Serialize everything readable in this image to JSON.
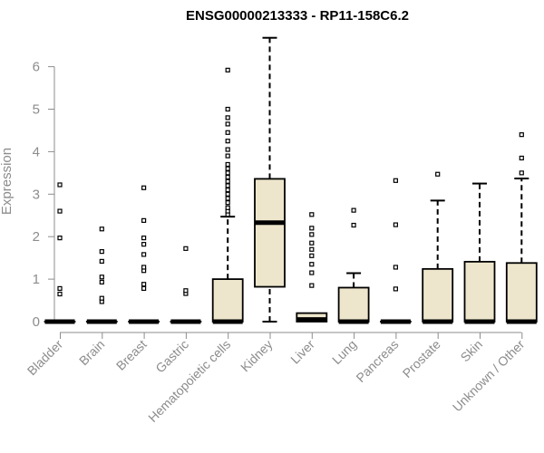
{
  "chart_data": {
    "type": "box",
    "title": "ENSG00000213333 - RP11-158C6.2",
    "xlabel": "",
    "ylabel": "Expression",
    "ylim": [
      0,
      6.8
    ],
    "yticks": [
      "0",
      "1",
      "2",
      "3",
      "4",
      "5",
      "6"
    ],
    "grid": false,
    "colors": {
      "box_fill": "#ede6cc",
      "stroke": "#000000",
      "axis_text": "#8c8c8c"
    },
    "categories": [
      "Bladder",
      "Brain",
      "Breast",
      "Gastric",
      "Hematopoietic cells",
      "Kidney",
      "Liver",
      "Lung",
      "Pancreas",
      "Prostate",
      "Skin",
      "Unknown / Other"
    ],
    "boxes": [
      {
        "name": "Bladder",
        "min": 0,
        "q1": 0,
        "median": 0,
        "q3": 0,
        "max": 0,
        "outliers": [
          0.65,
          0.78,
          1.97,
          2.6,
          3.22
        ]
      },
      {
        "name": "Brain",
        "min": 0,
        "q1": 0,
        "median": 0,
        "q3": 0,
        "max": 0,
        "outliers": [
          0.47,
          0.55,
          0.93,
          1.05,
          1.42,
          1.65,
          2.18
        ]
      },
      {
        "name": "Breast",
        "min": 0,
        "q1": 0,
        "median": 0,
        "q3": 0,
        "max": 0,
        "outliers": [
          0.78,
          0.88,
          1.2,
          1.28,
          1.58,
          1.82,
          1.97,
          2.38,
          3.15
        ]
      },
      {
        "name": "Gastric",
        "min": 0,
        "q1": 0,
        "median": 0,
        "q3": 0,
        "max": 0,
        "outliers": [
          0.66,
          0.73,
          1.72
        ]
      },
      {
        "name": "Hematopoietic cells",
        "min": 0,
        "q1": 0,
        "median": 0,
        "q3": 1.0,
        "max": 2.47,
        "outliers": [
          2.52,
          2.6,
          2.68,
          2.8,
          2.9,
          3.0,
          3.1,
          3.2,
          3.3,
          3.4,
          3.5,
          3.6,
          3.7,
          3.9,
          4.05,
          4.25,
          4.45,
          4.65,
          4.8,
          5.0,
          5.92
        ]
      },
      {
        "name": "Kidney",
        "min": 0,
        "q1": 0.82,
        "median": 2.33,
        "q3": 3.36,
        "max": 6.68,
        "outliers": []
      },
      {
        "name": "Liver",
        "min": 0,
        "q1": 0,
        "median": 0.05,
        "q3": 0.2,
        "max": 0.2,
        "outliers": [
          0.85,
          1.15,
          1.35,
          1.55,
          1.7,
          1.85,
          2.05,
          2.2,
          2.52
        ]
      },
      {
        "name": "Lung",
        "min": 0,
        "q1": 0,
        "median": 0,
        "q3": 0.8,
        "max": 1.14,
        "outliers": [
          2.27,
          2.62
        ]
      },
      {
        "name": "Pancreas",
        "min": 0,
        "q1": 0,
        "median": 0,
        "q3": 0,
        "max": 0,
        "outliers": [
          0.77,
          1.28,
          2.28,
          3.32
        ]
      },
      {
        "name": "Prostate",
        "min": 0,
        "q1": 0,
        "median": 0,
        "q3": 1.24,
        "max": 2.85,
        "outliers": [
          3.47
        ]
      },
      {
        "name": "Skin",
        "min": 0,
        "q1": 0,
        "median": 0,
        "q3": 1.41,
        "max": 3.25,
        "outliers": []
      },
      {
        "name": "Unknown / Other",
        "min": 0,
        "q1": 0,
        "median": 0,
        "q3": 1.38,
        "max": 3.37,
        "outliers": [
          3.5,
          3.85,
          4.4
        ]
      }
    ]
  }
}
